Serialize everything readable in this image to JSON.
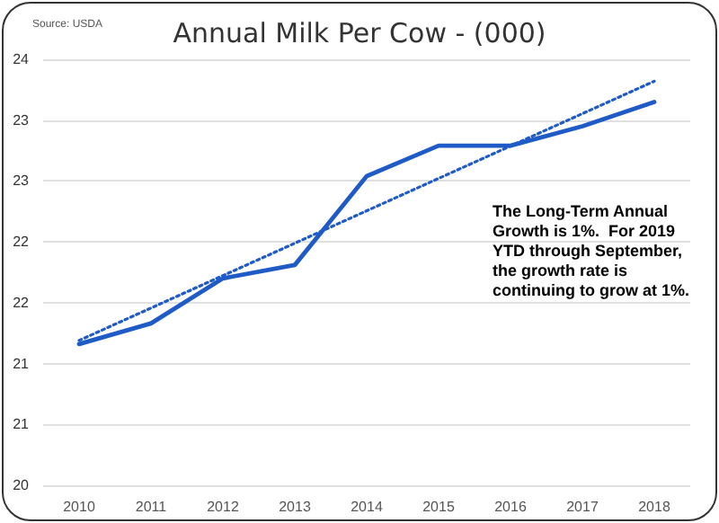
{
  "chart_data": {
    "type": "line",
    "title": "Annual Milk Per Cow - (000)",
    "categories": [
      "2010",
      "2011",
      "2012",
      "2013",
      "2014",
      "2015",
      "2016",
      "2017",
      "2018"
    ],
    "series": [
      {
        "color": "#1f5bc6",
        "values": [
          21.16,
          21.33,
          21.7,
          21.81,
          22.54,
          22.79,
          22.79,
          22.95,
          23.15
        ],
        "line_style": "solid"
      },
      {
        "type": "line",
        "color": "#1f5bc6",
        "values": [
          21.19,
          null,
          null,
          null,
          null,
          null,
          null,
          null,
          23.32
        ],
        "line_style": "dotted"
      }
    ],
    "ylim": [
      20,
      23.5
    ],
    "yticks": [
      {
        "value": 20,
        "label": "20"
      },
      {
        "value": 20.5,
        "label": "21"
      },
      {
        "value": 21,
        "label": "21"
      },
      {
        "value": 21.5,
        "label": "22"
      },
      {
        "value": 22,
        "label": "22"
      },
      {
        "value": 22.5,
        "label": "23"
      },
      {
        "value": 23,
        "label": "23"
      },
      {
        "value": 23.5,
        "label": "24"
      }
    ],
    "grid": "y",
    "marker": "none",
    "annotations": [
      "Source: USDA",
      "The Long-Term Annual Growth is 1%.  For 2019 YTD through September, the growth rate is continuing to grow at 1%."
    ]
  }
}
